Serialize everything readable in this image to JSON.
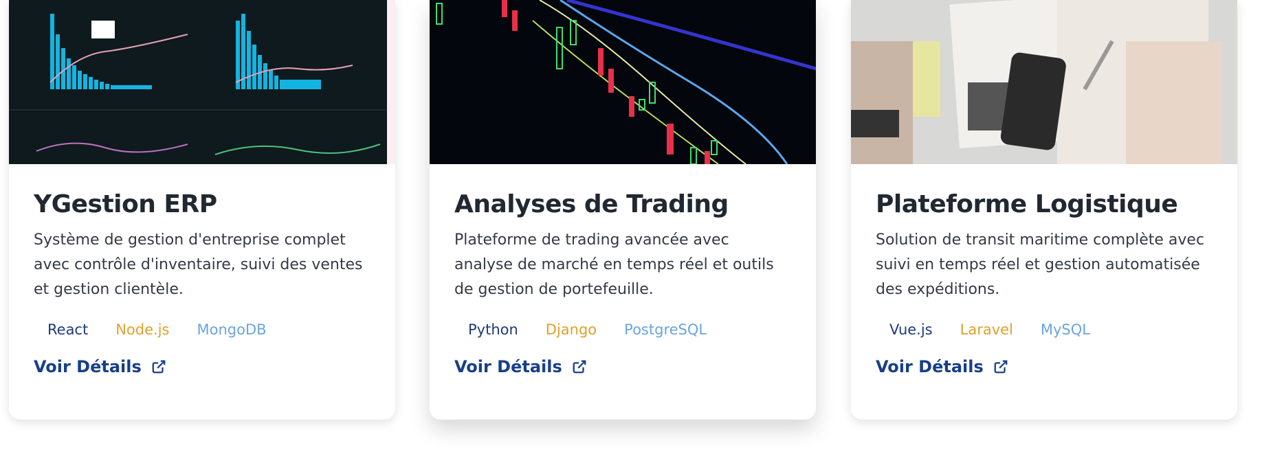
{
  "cards": [
    {
      "title": "YGestion ERP",
      "description": "Système de gestion d'entreprise complet avec contrôle d'inventaire, suivi des ventes et gestion clientèle.",
      "tags": [
        "React",
        "Node.js",
        "MongoDB"
      ],
      "link": "Voir Détails"
    },
    {
      "title": "Analyses de Trading",
      "description": "Plateforme de trading avancée avec analyse de marché en temps réel et outils de gestion de portefeuille.",
      "tags": [
        "Python",
        "Django",
        "PostgreSQL"
      ],
      "link": "Voir Détails"
    },
    {
      "title": "Plateforme Logistique",
      "description": "Solution de transit maritime complète avec suivi en temps réel et gestion automatisée des expéditions.",
      "tags": [
        "Vue.js",
        "Laravel",
        "MySQL"
      ],
      "link": "Voir Détails"
    }
  ]
}
